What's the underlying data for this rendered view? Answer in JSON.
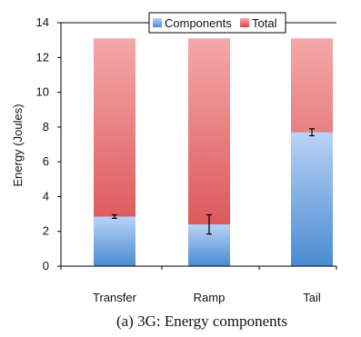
{
  "chart_data": {
    "type": "bar",
    "stacked_style": "component-overlay",
    "categories": [
      "Transfer",
      "Ramp",
      "Tail"
    ],
    "series": [
      {
        "name": "Components",
        "values": [
          2.85,
          2.4,
          7.7
        ],
        "error": [
          0.1,
          0.55,
          0.2
        ],
        "color": "#5b9bd5"
      },
      {
        "name": "Total",
        "values": [
          13.1,
          13.1,
          13.1
        ],
        "color": "#e05a5a"
      }
    ],
    "ylabel": "Energy (Joules)",
    "ylim": [
      0,
      14
    ],
    "yticks": [
      "0",
      "2",
      "4",
      "6",
      "8",
      "10",
      "12",
      "14"
    ],
    "grid": false,
    "legend_position": "top-center",
    "caption": "(a) 3G: Energy components"
  }
}
